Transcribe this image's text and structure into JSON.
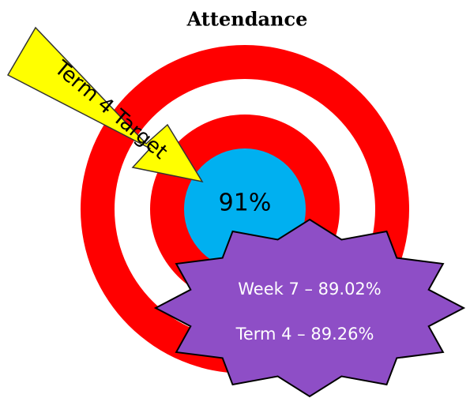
{
  "title": "Attendance",
  "arrow_label": "Term 4 Target",
  "target": "91%",
  "results": [
    "Week 7 – 89.02%",
    "Term 4 – 89.26%"
  ]
}
